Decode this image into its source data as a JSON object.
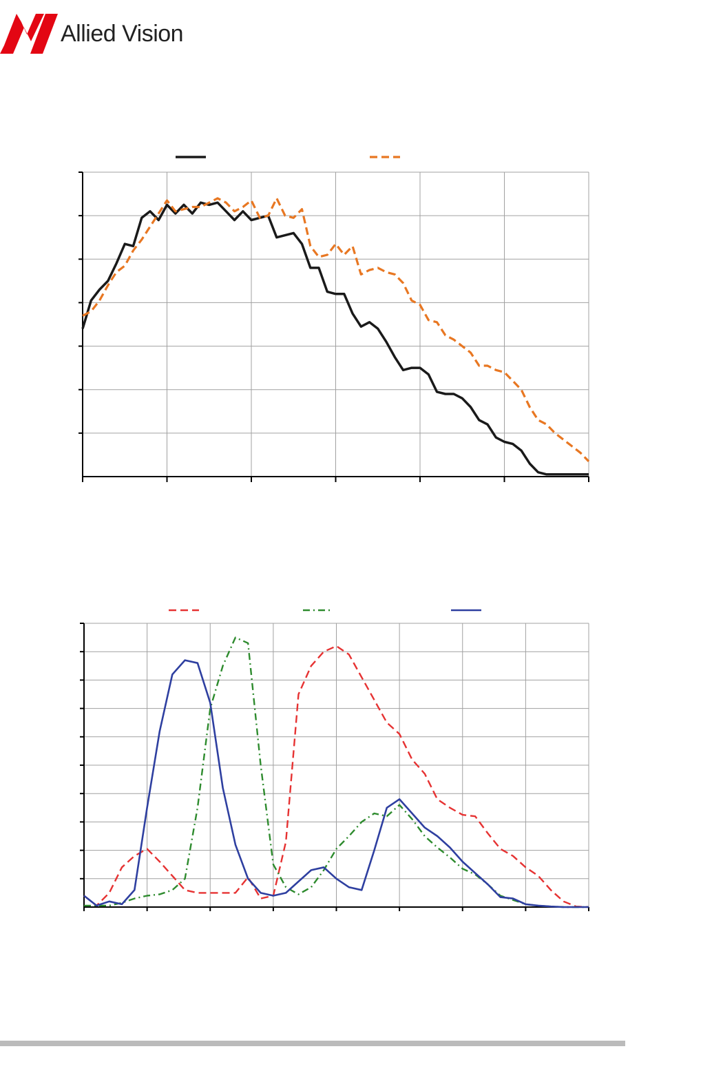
{
  "logo": {
    "brand": "Allied Vision",
    "brand_color": "#e30613"
  },
  "footer": {
    "bar_color": "#bbbbbb"
  },
  "chart_data": [
    {
      "type": "line",
      "grid": true,
      "legend_placement": "top",
      "x": [
        0,
        2,
        4,
        6,
        8,
        10,
        12,
        14,
        16,
        18,
        20,
        22,
        24,
        26,
        28,
        30,
        32,
        34,
        36,
        38,
        40,
        42,
        44,
        46,
        48,
        50,
        52,
        54,
        56,
        58,
        60,
        62,
        64,
        66,
        68,
        70,
        72,
        74,
        76,
        78,
        80,
        82,
        84,
        86,
        88,
        90,
        92,
        94,
        96,
        98,
        100,
        102,
        104,
        106,
        108,
        110,
        112,
        114,
        116,
        118,
        120
      ],
      "xlim": [
        0,
        120
      ],
      "ylim": [
        0,
        7
      ],
      "series": [
        {
          "color": "#1a1a1a",
          "style": "solid",
          "values": [
            3.4,
            4.05,
            4.3,
            4.5,
            4.9,
            5.35,
            5.3,
            5.95,
            6.1,
            5.9,
            6.25,
            6.05,
            6.25,
            6.05,
            6.3,
            6.25,
            6.3,
            6.1,
            5.9,
            6.1,
            5.9,
            5.95,
            6.0,
            5.5,
            5.55,
            5.6,
            5.35,
            4.8,
            4.8,
            4.25,
            4.2,
            4.2,
            3.75,
            3.45,
            3.55,
            3.4,
            3.1,
            2.75,
            2.45,
            2.5,
            2.5,
            2.35,
            1.95,
            1.9,
            1.9,
            1.8,
            1.6,
            1.3,
            1.2,
            0.9,
            0.8,
            0.75,
            0.6,
            0.3,
            0.1,
            0.05,
            0.05,
            0.05,
            0.05,
            0.05,
            0.05
          ]
        },
        {
          "color": "#e87722",
          "style": "dashed",
          "values": [
            3.7,
            3.8,
            4.05,
            4.4,
            4.7,
            4.85,
            5.2,
            5.45,
            5.75,
            6.05,
            6.35,
            6.1,
            6.15,
            6.2,
            6.2,
            6.3,
            6.4,
            6.3,
            6.1,
            6.2,
            6.35,
            5.95,
            6.0,
            6.4,
            6.0,
            5.95,
            6.15,
            5.3,
            5.05,
            5.1,
            5.35,
            5.1,
            5.3,
            4.65,
            4.75,
            4.8,
            4.7,
            4.65,
            4.45,
            4.05,
            3.95,
            3.6,
            3.55,
            3.25,
            3.15,
            3.0,
            2.85,
            2.55,
            2.55,
            2.45,
            2.4,
            2.2,
            2.0,
            1.6,
            1.3,
            1.2,
            1.0,
            0.85,
            0.7,
            0.55,
            0.35
          ]
        }
      ]
    },
    {
      "type": "line",
      "grid": true,
      "legend_placement": "top",
      "x": [
        0,
        5,
        10,
        15,
        20,
        25,
        30,
        35,
        40,
        45,
        50,
        55,
        60,
        65,
        70,
        75,
        80,
        85,
        90,
        95,
        100,
        105,
        110,
        115,
        120,
        125,
        130,
        135,
        140,
        145,
        150,
        155,
        160,
        165,
        170,
        175,
        180,
        185,
        190,
        195,
        200
      ],
      "xlim": [
        0,
        200
      ],
      "ylim": [
        0,
        10
      ],
      "series": [
        {
          "color": "#e63232",
          "style": "dashed",
          "values": [
            0.4,
            0.05,
            0.5,
            1.4,
            1.8,
            2.05,
            1.6,
            1.1,
            0.6,
            0.5,
            0.5,
            0.5,
            0.5,
            1.05,
            0.3,
            0.4,
            2.3,
            7.5,
            8.5,
            9.0,
            9.2,
            8.9,
            8.1,
            7.3,
            6.5,
            6.1,
            5.2,
            4.7,
            3.8,
            3.5,
            3.25,
            3.2,
            2.6,
            2.05,
            1.8,
            1.4,
            1.1,
            0.6,
            0.2,
            0.02,
            0.0
          ]
        },
        {
          "color": "#2e8b2e",
          "style": "dashdot",
          "values": [
            0.05,
            0.05,
            0.05,
            0.15,
            0.3,
            0.4,
            0.45,
            0.6,
            1.0,
            3.5,
            7.0,
            8.5,
            9.5,
            9.3,
            5.0,
            1.5,
            0.7,
            0.45,
            0.7,
            1.3,
            2.05,
            2.5,
            3.0,
            3.3,
            3.2,
            3.6,
            3.1,
            2.5,
            2.1,
            1.75,
            1.35,
            1.15,
            0.8,
            0.4,
            0.25,
            0.1,
            0.05,
            0.02,
            0.0,
            0.0,
            0.0
          ]
        },
        {
          "color": "#2e3fa0",
          "style": "solid",
          "values": [
            0.4,
            0.05,
            0.2,
            0.1,
            0.6,
            3.5,
            6.2,
            8.2,
            8.7,
            8.6,
            7.2,
            4.2,
            2.2,
            1.0,
            0.5,
            0.4,
            0.5,
            0.9,
            1.3,
            1.4,
            1.0,
            0.7,
            0.6,
            2.0,
            3.5,
            3.8,
            3.3,
            2.8,
            2.5,
            2.1,
            1.6,
            1.2,
            0.8,
            0.35,
            0.3,
            0.1,
            0.05,
            0.02,
            0.0,
            0.0,
            0.0
          ]
        }
      ]
    }
  ]
}
